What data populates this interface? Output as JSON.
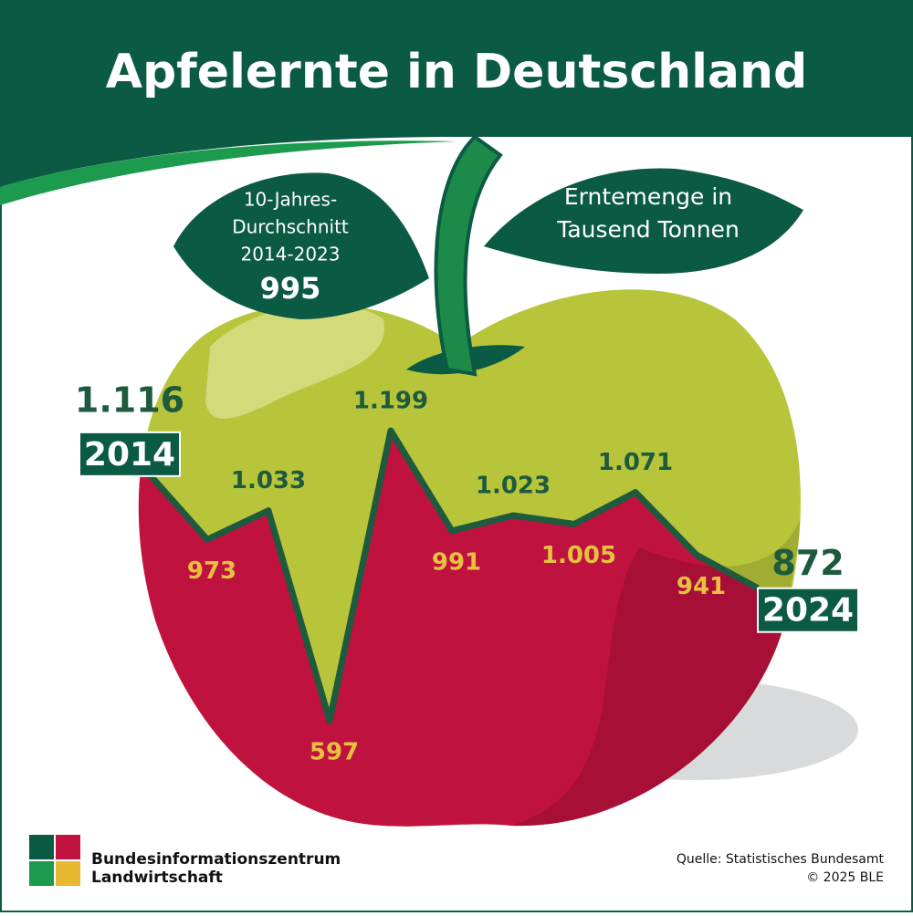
{
  "chart_data": {
    "type": "line",
    "title": "Apfelernte in Deutschland",
    "subtitle": "Erntemenge in Tausend Tonnen",
    "average": {
      "label_lines": [
        "10-Jahres-",
        "Durchschnitt",
        "2014-2023"
      ],
      "value": 995
    },
    "categories": [
      "2014",
      null,
      null,
      null,
      null,
      null,
      null,
      null,
      null,
      null,
      "2024"
    ],
    "values": [
      1116,
      973,
      1033,
      597,
      1199,
      991,
      1023,
      1005,
      1071,
      941,
      872
    ],
    "value_labels": [
      "1.116",
      "973",
      "1.033",
      "597",
      "1.199",
      "991",
      "1.023",
      "1.005",
      "1.071",
      "941",
      "872"
    ],
    "color": "#1d5a3e",
    "area_color": "#c0123f",
    "source": "Quelle: Statistisches Bundesamt",
    "copyright": "© 2025 BLE",
    "publisher_lines": [
      "Bundesinformationszentrum",
      "Landwirtschaft"
    ]
  }
}
